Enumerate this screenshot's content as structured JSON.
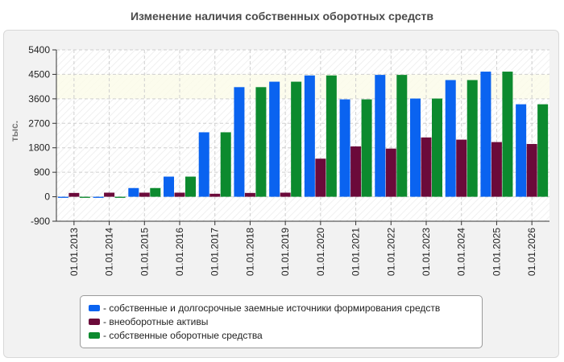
{
  "title": "Изменение наличия собственных оборотных средств",
  "chart_data": {
    "type": "bar",
    "ylabel": "тыс.",
    "ylim": [
      -900,
      5400
    ],
    "yticks": [
      5400,
      4500,
      3600,
      2700,
      1800,
      900,
      0,
      -900
    ],
    "categories": [
      "01.01.2013",
      "01.01.2014",
      "01.01.2015",
      "01.01.2016",
      "01.01.2017",
      "01.01.2018",
      "01.01.2019",
      "01.01.2020",
      "01.01.2021",
      "01.01.2022",
      "01.01.2023",
      "01.01.2024",
      "01.01.2025",
      "01.01.2026"
    ],
    "series": [
      {
        "name": "- собственные и долгосрочные заемные источники формирования средств",
        "color": "#0a63f0",
        "values": [
          -40,
          -40,
          320,
          740,
          2370,
          4030,
          4230,
          4460,
          3580,
          4480,
          3610,
          4290,
          4600,
          3400
        ]
      },
      {
        "name": "- внеоборотные активы",
        "color": "#6b0a3a",
        "values": [
          140,
          150,
          150,
          150,
          110,
          140,
          150,
          1400,
          1850,
          1770,
          2180,
          2100,
          2010,
          1940
        ]
      },
      {
        "name": "- собственные оборотные средства",
        "color": "#0c8a2e",
        "values": [
          -40,
          -40,
          320,
          740,
          2370,
          4030,
          4230,
          4460,
          3580,
          4480,
          3610,
          4290,
          4600,
          3400
        ]
      }
    ],
    "grid": true,
    "legend_position": "bottom"
  }
}
